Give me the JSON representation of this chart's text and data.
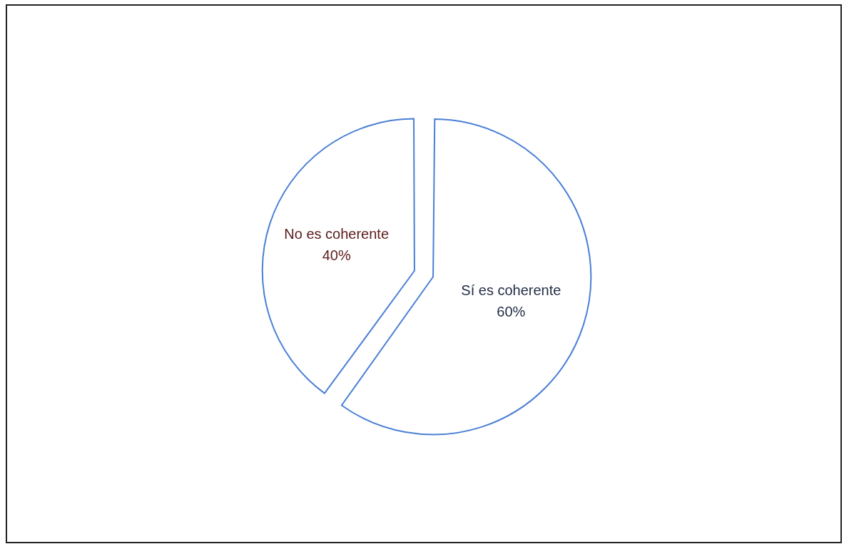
{
  "chart_data": {
    "type": "pie",
    "categories": [
      "Sí es coherente",
      "No es coherente"
    ],
    "values": [
      60,
      40
    ],
    "value_labels": [
      "60%",
      "40%"
    ],
    "colors": [
      "#4a7fd6",
      "#4a7fd6"
    ],
    "legend": false
  }
}
